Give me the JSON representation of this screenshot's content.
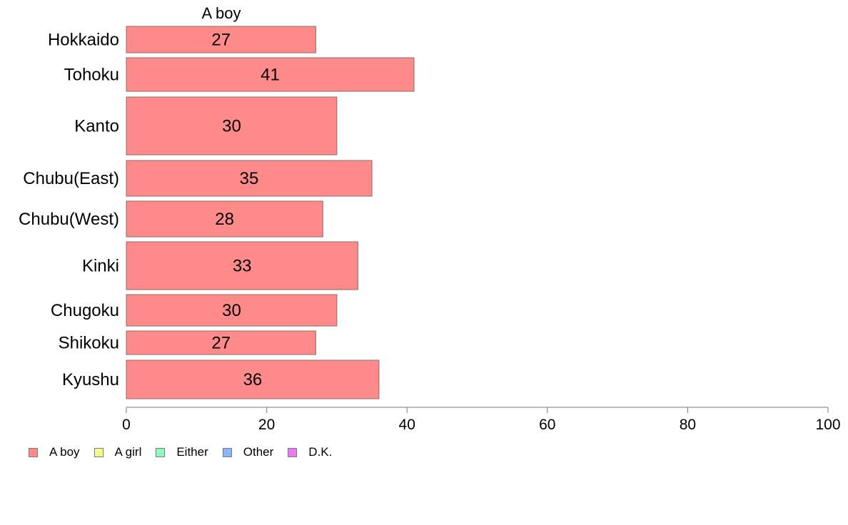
{
  "chart_data": {
    "type": "bar",
    "orientation": "horizontal",
    "title": "A boy",
    "categories": [
      "Hokkaido",
      "Tohoku",
      "Kanto",
      "Chubu(East)",
      "Chubu(West)",
      "Kinki",
      "Chugoku",
      "Shikoku",
      "Kyushu"
    ],
    "series": [
      {
        "name": "A boy",
        "values": [
          27,
          41,
          30,
          35,
          28,
          33,
          30,
          27,
          36
        ],
        "color": "#ff8a8a"
      }
    ],
    "data_labels": [
      "27",
      "41",
      "30",
      "35",
      "28",
      "33",
      "30",
      "27",
      "36"
    ],
    "xlim": [
      0,
      100
    ],
    "xticks": [
      0,
      20,
      40,
      60,
      80,
      100
    ],
    "grid": false,
    "legend_position": "bottom-left"
  },
  "legend": {
    "items": [
      {
        "label": "A boy",
        "color": "#ff8a8a"
      },
      {
        "label": "A girl",
        "color": "#f1ff8a"
      },
      {
        "label": "Either",
        "color": "#8affbd"
      },
      {
        "label": "Other",
        "color": "#8ab5ff"
      },
      {
        "label": "D.K.",
        "color": "#e97cf5"
      }
    ]
  }
}
